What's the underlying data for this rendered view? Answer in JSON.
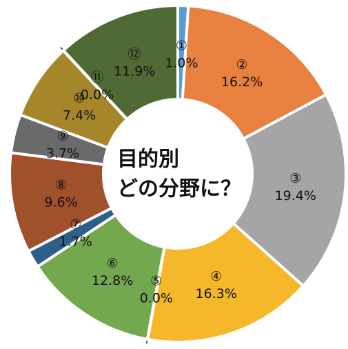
{
  "chart_data": {
    "type": "donut",
    "title": [
      "目的別",
      "どの分野に？"
    ],
    "categories": [
      "①",
      "②",
      "③",
      "④",
      "⑤",
      "⑥",
      "⑦",
      "⑧",
      "⑨",
      "⑩",
      "⑪",
      "⑫"
    ],
    "values": [
      1.0,
      16.2,
      19.4,
      16.3,
      0.0,
      12.8,
      1.7,
      9.6,
      3.7,
      7.4,
      0.0,
      11.9
    ],
    "value_labels": [
      "1.0%",
      "16.2%",
      "19.4%",
      "16.3%",
      "0.0%",
      "12.8%",
      "1.7%",
      "9.6%",
      "3.7%",
      "7.4%",
      "0.0%",
      "11.9%"
    ],
    "colors": [
      "#5b9bd5",
      "#e8813f",
      "#a5a5a8",
      "#f4b82a",
      "#2e5f8a",
      "#74a84e",
      "#2e5f8a",
      "#a0502a",
      "#6a6a6a",
      "#a6862a",
      "#a6862a",
      "#4f6a35"
    ]
  }
}
